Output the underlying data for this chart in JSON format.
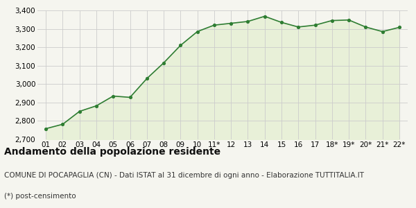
{
  "x_labels": [
    "01",
    "02",
    "03",
    "04",
    "05",
    "06",
    "07",
    "08",
    "09",
    "10",
    "11*",
    "12",
    "13",
    "14",
    "15",
    "16",
    "17",
    "18*",
    "19*",
    "20*",
    "21*",
    "22*"
  ],
  "y_values": [
    2758,
    2782,
    2852,
    2882,
    2935,
    2928,
    3030,
    3115,
    3210,
    3285,
    3320,
    3330,
    3340,
    3368,
    3335,
    3310,
    3320,
    3345,
    3348,
    3310,
    3285,
    3308
  ],
  "line_color": "#2e7d32",
  "fill_color": "#e8f0d8",
  "marker_color": "#2e7d32",
  "bg_color": "#f5f5ef",
  "grid_color": "#cccccc",
  "ylim": [
    2700,
    3400
  ],
  "yticks": [
    2700,
    2800,
    2900,
    3000,
    3100,
    3200,
    3300,
    3400
  ],
  "title": "Andamento della popolazione residente",
  "subtitle": "COMUNE DI POCAPAGLIA (CN) - Dati ISTAT al 31 dicembre di ogni anno - Elaborazione TUTTITALIA.IT",
  "footnote": "(*) post-censimento",
  "title_fontsize": 10,
  "subtitle_fontsize": 7.5,
  "footnote_fontsize": 7.5,
  "tick_fontsize": 7.5
}
